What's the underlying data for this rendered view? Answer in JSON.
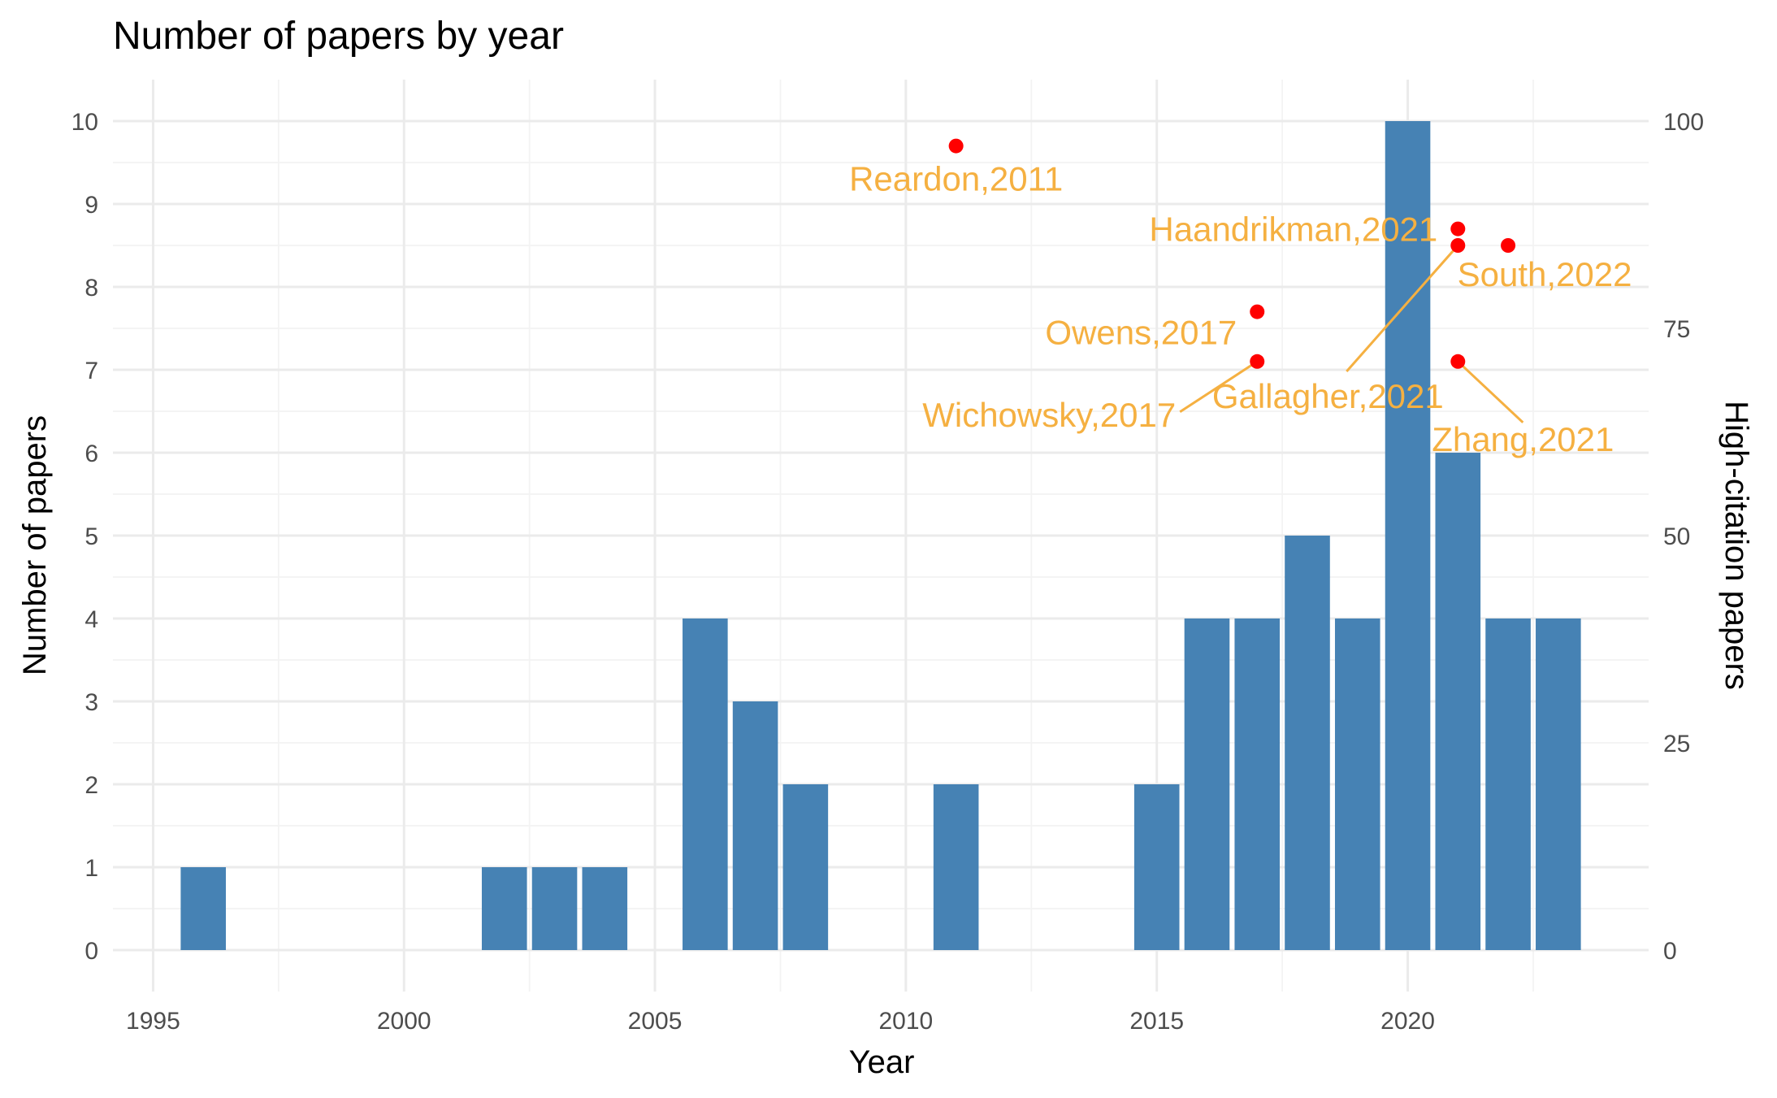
{
  "chart_data": {
    "type": "bar",
    "title": "Number of papers by year",
    "xlabel": "Year",
    "ylabel": "Number of papers",
    "y2label": "High-citation papers",
    "xlim": [
      1994.2,
      2024.8
    ],
    "ylim": [
      -0.5,
      10.5
    ],
    "y2lim": [
      -5,
      105
    ],
    "x_ticks": [
      1995,
      2000,
      2005,
      2010,
      2015,
      2020
    ],
    "y_ticks": [
      0,
      1,
      2,
      3,
      4,
      5,
      6,
      7,
      8,
      9,
      10
    ],
    "y2_ticks": [
      0,
      25,
      50,
      75,
      100
    ],
    "grid": true,
    "series": [
      {
        "kind": "bar",
        "color": "#4682b4",
        "x": [
          1996,
          2002,
          2003,
          2004,
          2006,
          2007,
          2008,
          2011,
          2015,
          2016,
          2017,
          2018,
          2019,
          2020,
          2021,
          2022,
          2023
        ],
        "values": [
          1,
          1,
          1,
          1,
          4,
          3,
          2,
          2,
          2,
          4,
          4,
          5,
          4,
          10,
          6,
          4,
          4
        ]
      },
      {
        "kind": "scatter",
        "axis": "right",
        "color": "#ff0000",
        "points": [
          {
            "x": 2011,
            "y": 97,
            "label": "Reardon,2011"
          },
          {
            "x": 2021,
            "y": 87,
            "label": "Haandrikman,2021"
          },
          {
            "x": 2021,
            "y": 85,
            "label": "Gallagher,2021"
          },
          {
            "x": 2022,
            "y": 85,
            "label": "South,2022"
          },
          {
            "x": 2017,
            "y": 77,
            "label": "Owens,2017"
          },
          {
            "x": 2017,
            "y": 71,
            "label": "Wichowsky,2017"
          },
          {
            "x": 2021,
            "y": 71,
            "label": "Zhang,2021"
          }
        ]
      }
    ],
    "label_color": "#f5b041"
  }
}
